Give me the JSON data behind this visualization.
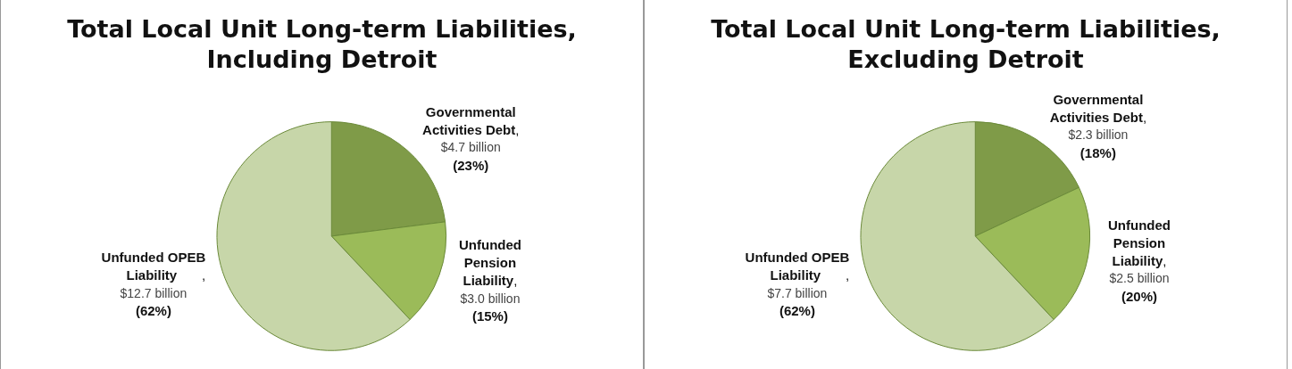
{
  "chart_data": [
    {
      "type": "pie",
      "title": "Total Local Unit Long-term Liabilities,\nIncluding Detroit",
      "categories": [
        "Governmental Activities Debt",
        "Unfunded Pension Liability",
        "Unfunded OPEB Liability"
      ],
      "values": [
        23,
        15,
        62
      ],
      "colors": [
        "#7f9b48",
        "#9bbb59",
        "#c7d6a9"
      ],
      "value_labels": [
        ",\n$4.7 billion\n(23%)",
        ",\n$3.0 billion\n(15%)",
        ",\n$12.7 billion\n(62%)"
      ],
      "legend": false
    },
    {
      "type": "pie",
      "title": "Total Local Unit Long-term Liabilities,\nExcluding Detroit",
      "categories": [
        "Governmental Activities Debt",
        "Unfunded Pension Liability",
        "Unfunded OPEB Liability"
      ],
      "values": [
        18,
        20,
        62
      ],
      "colors": [
        "#7f9b48",
        "#9bbb59",
        "#c7d6a9"
      ],
      "value_labels": [
        ",\n$2.3 billion\n(18%)",
        ",\n$2.5 billion\n(20%)",
        ",\n$7.7 billion\n(62%)"
      ],
      "legend": false
    }
  ]
}
